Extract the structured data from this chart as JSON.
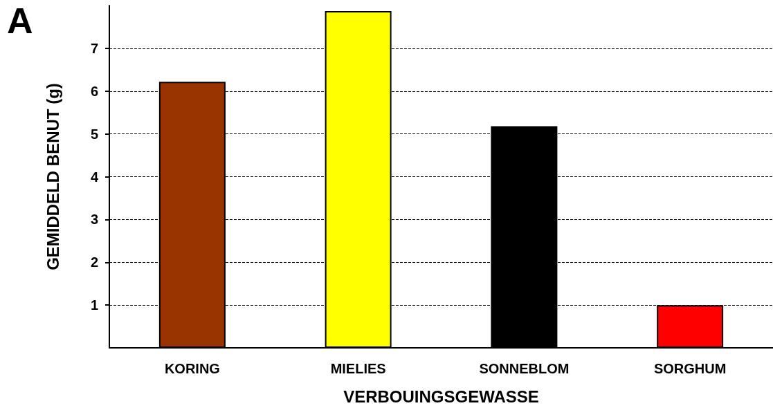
{
  "chart_data": {
    "type": "bar",
    "xlabel": "VERBOUINGSGEWASSE",
    "ylabel": "GEMIDDELD BENUT (g)",
    "annotations": [
      "A"
    ],
    "categories": [
      "KORING",
      "MIELIES",
      "SONNEBLOM",
      "SORGHUM"
    ],
    "values": [
      6.22,
      7.87,
      5.18,
      1.0
    ],
    "colors": [
      "#993300",
      "#ffff00",
      "#000000",
      "#ff0000"
    ],
    "ylim": [
      0,
      8
    ],
    "yticks": [
      1,
      2,
      3,
      4,
      5,
      6,
      7
    ],
    "grid": "y"
  }
}
